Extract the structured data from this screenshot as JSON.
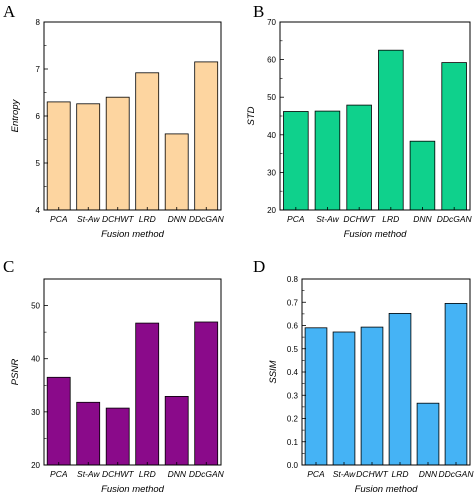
{
  "chart_data": [
    {
      "panel": "A",
      "type": "bar",
      "categories": [
        "PCA",
        "St-Aw",
        "DCHWT",
        "LRD",
        "DNN",
        "DDcGAN"
      ],
      "values": [
        6.3,
        6.26,
        6.4,
        6.92,
        5.62,
        7.15
      ],
      "xlabel": "Fusion method",
      "ylabel": "Entropy",
      "ylim": [
        4,
        8
      ],
      "yticks": [
        4,
        5,
        6,
        7,
        8
      ],
      "bar_color": "#fdd5a0",
      "grid": false
    },
    {
      "panel": "B",
      "type": "bar",
      "categories": [
        "PCA",
        "St-Aw",
        "DCHWT",
        "LRD",
        "DNN",
        "DDcGAN"
      ],
      "values": [
        46.2,
        46.3,
        47.9,
        62.5,
        38.3,
        59.2
      ],
      "xlabel": "Fusion method",
      "ylabel": "STD",
      "ylim": [
        20,
        70
      ],
      "yticks": [
        20,
        30,
        40,
        50,
        60,
        70
      ],
      "bar_color": "#0fd18c",
      "grid": false
    },
    {
      "panel": "C",
      "type": "bar",
      "categories": [
        "PCA",
        "St-Aw",
        "DCHWT",
        "LRD",
        "DNN",
        "DDcGAN"
      ],
      "values": [
        36.5,
        31.8,
        30.7,
        46.7,
        32.9,
        46.9
      ],
      "xlabel": "Fusion method",
      "ylabel": "PSNR",
      "ylim": [
        20,
        55
      ],
      "yticks": [
        20,
        30,
        40,
        50
      ],
      "bar_color": "#8a0a8a",
      "grid": false
    },
    {
      "panel": "D",
      "type": "bar",
      "categories": [
        "PCA",
        "St-Aw",
        "DCHWT",
        "LRD",
        "DNN",
        "DDcGAN"
      ],
      "values": [
        0.59,
        0.572,
        0.593,
        0.652,
        0.266,
        0.695
      ],
      "xlabel": "Fusion method",
      "ylabel": "SSIM",
      "ylim": [
        0.0,
        0.8
      ],
      "yticks": [
        "0.0",
        "0.1",
        "0.2",
        "0.3",
        "0.4",
        "0.5",
        "0.6",
        "0.7",
        "0.8"
      ],
      "bar_color": "#45b3f5",
      "grid": false
    }
  ]
}
